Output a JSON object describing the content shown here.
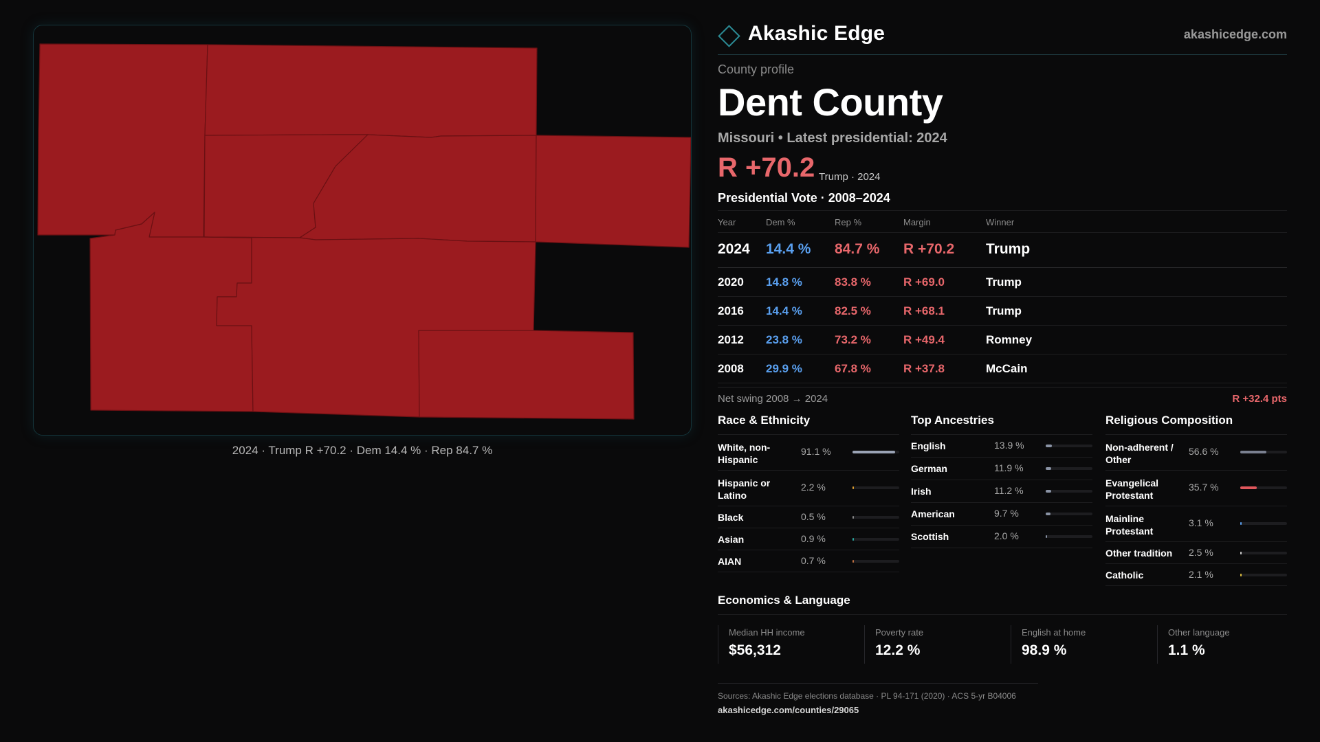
{
  "brand": {
    "name": "Akashic Edge",
    "site": "akashicedge.com",
    "accent": "#2b8a94"
  },
  "map": {
    "caption": "2024 · Trump R +70.2 · Dem 14.4 % · Rep 84.7 %",
    "fill_color": "#9b1b1f"
  },
  "profile": {
    "kicker": "County profile",
    "county": "Dent County",
    "subline": "Missouri • Latest presidential: 2024",
    "margin": "R +70.2",
    "margin_sub": "Trump · 2024"
  },
  "votes": {
    "title": "Presidential Vote · 2008–2024",
    "headers": {
      "year": "Year",
      "dem": "Dem %",
      "rep": "Rep %",
      "margin": "Margin",
      "winner": "Winner"
    },
    "rows": [
      {
        "year": "2024",
        "dem": "14.4 %",
        "rep": "84.7 %",
        "margin": "R +70.2",
        "winner": "Trump"
      },
      {
        "year": "2020",
        "dem": "14.8 %",
        "rep": "83.8 %",
        "margin": "R +69.0",
        "winner": "Trump"
      },
      {
        "year": "2016",
        "dem": "14.4 %",
        "rep": "82.5 %",
        "margin": "R +68.1",
        "winner": "Trump"
      },
      {
        "year": "2012",
        "dem": "23.8 %",
        "rep": "73.2 %",
        "margin": "R +49.4",
        "winner": "Romney"
      },
      {
        "year": "2008",
        "dem": "29.9 %",
        "rep": "67.8 %",
        "margin": "R +37.8",
        "winner": "McCain"
      }
    ],
    "swing_label": "Net swing 2008 → 2024",
    "swing_value": "R +32.4 pts"
  },
  "race": {
    "title": "Race & Ethnicity",
    "rows": [
      {
        "label": "White, non-Hispanic",
        "value": "91.1 %",
        "pct": 91.1,
        "color": "#9aa3b5"
      },
      {
        "label": "Hispanic or Latino",
        "value": "2.2 %",
        "pct": 2.2,
        "color": "#e0a030"
      },
      {
        "label": "Black",
        "value": "0.5 %",
        "pct": 0.5,
        "color": "#8a8a8a"
      },
      {
        "label": "Asian",
        "value": "0.9 %",
        "pct": 0.9,
        "color": "#2aa8a0"
      },
      {
        "label": "AIAN",
        "value": "0.7 %",
        "pct": 0.7,
        "color": "#c07040"
      }
    ]
  },
  "ancestry": {
    "title": "Top Ancestries",
    "rows": [
      {
        "label": "English",
        "value": "13.9 %",
        "pct": 13.9,
        "color": "#8a93a5"
      },
      {
        "label": "German",
        "value": "11.9 %",
        "pct": 11.9,
        "color": "#8a93a5"
      },
      {
        "label": "Irish",
        "value": "11.2 %",
        "pct": 11.2,
        "color": "#8a93a5"
      },
      {
        "label": "American",
        "value": "9.7 %",
        "pct": 9.7,
        "color": "#8a93a5"
      },
      {
        "label": "Scottish",
        "value": "2.0 %",
        "pct": 2.0,
        "color": "#8a93a5"
      }
    ]
  },
  "religion": {
    "title": "Religious Composition",
    "rows": [
      {
        "label": "Non-adherent / Other",
        "value": "56.6 %",
        "pct": 56.6,
        "color": "#7a8090"
      },
      {
        "label": "Evangelical Protestant",
        "value": "35.7 %",
        "pct": 35.7,
        "color": "#e0575c"
      },
      {
        "label": "Mainline Protestant",
        "value": "3.1 %",
        "pct": 3.1,
        "color": "#5aa0f0"
      },
      {
        "label": "Other tradition",
        "value": "2.5 %",
        "pct": 2.5,
        "color": "#cfcfcf"
      },
      {
        "label": "Catholic",
        "value": "2.1 %",
        "pct": 2.1,
        "color": "#e0c040"
      }
    ]
  },
  "econ": {
    "title": "Economics & Language",
    "items": [
      {
        "label": "Median HH income",
        "value": "$56,312"
      },
      {
        "label": "Poverty rate",
        "value": "12.2 %"
      },
      {
        "label": "English at home",
        "value": "98.9 %"
      },
      {
        "label": "Other language",
        "value": "1.1 %"
      }
    ]
  },
  "footer": {
    "sources": "Sources: Akashic Edge elections database · PL 94-171 (2020) · ACS 5-yr B04006",
    "url": "akashicedge.com/counties/29065"
  }
}
